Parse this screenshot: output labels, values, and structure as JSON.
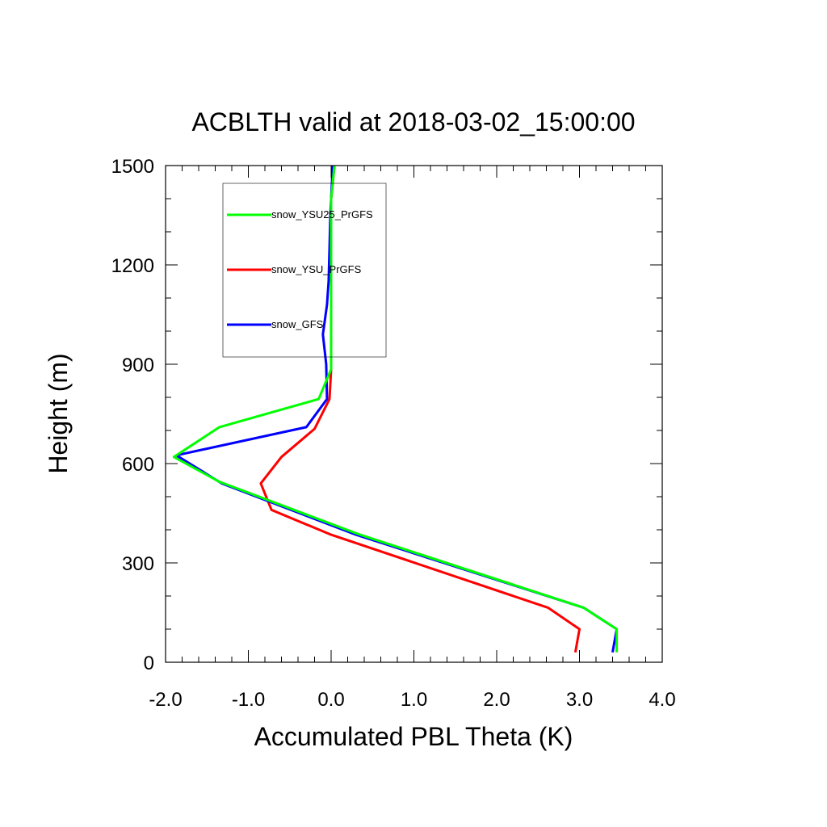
{
  "chart_data": {
    "type": "line",
    "title": "ACBLTH valid at 2018-03-02_15:00:00",
    "xlabel": "Accumulated PBL Theta (K)",
    "ylabel": "Height (m)",
    "xlim": [
      -2.0,
      4.0
    ],
    "ylim": [
      0,
      1500
    ],
    "xticks": [
      -2.0,
      -1.0,
      0.0,
      1.0,
      2.0,
      3.0,
      4.0
    ],
    "xtick_labels": [
      "-2.0",
      "-1.0",
      "0.0",
      "1.0",
      "2.0",
      "3.0",
      "4.0"
    ],
    "yticks": [
      0,
      300,
      600,
      900,
      1200,
      1500
    ],
    "ytick_labels": [
      "0",
      "300",
      "600",
      "900",
      "1200",
      "1500"
    ],
    "grid": false,
    "legend_position": "top-left",
    "series": [
      {
        "name": "snow_YSU25_PrGFS",
        "color": "#00ff00",
        "x": [
          3.45,
          3.45,
          3.05,
          0.35,
          -1.35,
          -1.9,
          -1.35,
          -0.15,
          0.0,
          0.0,
          0.0,
          0.0,
          0.0,
          0.0,
          0.0,
          0.04
        ],
        "y": [
          30,
          100,
          165,
          385,
          545,
          620,
          710,
          795,
          885,
          950,
          1050,
          1150,
          1250,
          1350,
          1400,
          1500
        ]
      },
      {
        "name": "snow_YSU_PrGFS",
        "color": "#ff0000",
        "x": [
          2.95,
          3.0,
          2.62,
          0.0,
          -0.72,
          -0.85,
          -0.6,
          -0.2,
          -0.02,
          0.0,
          0.0,
          0.0,
          0.0,
          0.0,
          0.0,
          0.04
        ],
        "y": [
          30,
          100,
          165,
          385,
          460,
          540,
          620,
          705,
          795,
          885,
          1050,
          1150,
          1250,
          1350,
          1400,
          1500
        ]
      },
      {
        "name": "snow_GFS",
        "color": "#0000ff",
        "x": [
          3.4,
          3.45,
          3.05,
          0.3,
          -1.32,
          -1.87,
          -0.3,
          -0.05,
          -0.06,
          -0.1,
          -0.05,
          -0.03,
          -0.02,
          -0.01,
          0.0,
          0.02
        ],
        "y": [
          30,
          100,
          165,
          385,
          540,
          625,
          710,
          795,
          900,
          990,
          1080,
          1150,
          1250,
          1350,
          1400,
          1500
        ]
      }
    ]
  }
}
